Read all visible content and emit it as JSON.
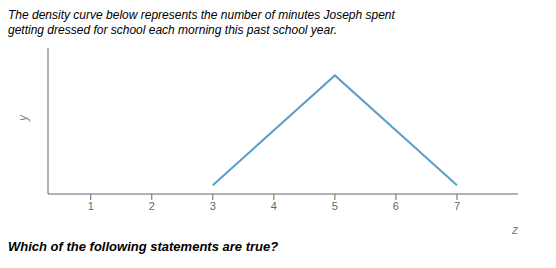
{
  "chart_data": {
    "type": "line",
    "title": "The density curve below represents the number of minutes Joseph spent\ngetting dressed for school each morning this past school year.",
    "subtitle": "Which of the following statements are true?",
    "x": [
      3,
      5,
      7
    ],
    "values": [
      0,
      1,
      0
    ],
    "color": "#5b9ec9",
    "xlim": [
      0.3,
      8.0
    ],
    "ylim": [
      -0.08,
      1.25
    ],
    "xticks": [
      1,
      2,
      3,
      4,
      5,
      6,
      7
    ],
    "x_label": "z",
    "y_label": "y",
    "tick_labels": "x"
  }
}
